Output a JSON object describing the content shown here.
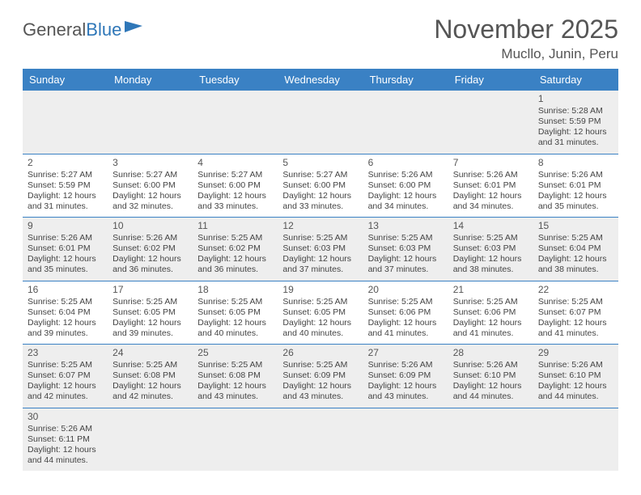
{
  "logo": {
    "text1": "General",
    "text2": "Blue"
  },
  "title": "November 2025",
  "subtitle": "Mucllo, Junin, Peru",
  "colors": {
    "header_bg": "#3a81c4",
    "header_text": "#ffffff",
    "alt_row_bg": "#eeeeee",
    "border": "#3a81c4",
    "text": "#444444"
  },
  "columns": [
    "Sunday",
    "Monday",
    "Tuesday",
    "Wednesday",
    "Thursday",
    "Friday",
    "Saturday"
  ],
  "weeks": [
    [
      null,
      null,
      null,
      null,
      null,
      null,
      {
        "n": "1",
        "sr": "5:28 AM",
        "ss": "5:59 PM",
        "dl": "12 hours and 31 minutes."
      }
    ],
    [
      {
        "n": "2",
        "sr": "5:27 AM",
        "ss": "5:59 PM",
        "dl": "12 hours and 31 minutes."
      },
      {
        "n": "3",
        "sr": "5:27 AM",
        "ss": "6:00 PM",
        "dl": "12 hours and 32 minutes."
      },
      {
        "n": "4",
        "sr": "5:27 AM",
        "ss": "6:00 PM",
        "dl": "12 hours and 33 minutes."
      },
      {
        "n": "5",
        "sr": "5:27 AM",
        "ss": "6:00 PM",
        "dl": "12 hours and 33 minutes."
      },
      {
        "n": "6",
        "sr": "5:26 AM",
        "ss": "6:00 PM",
        "dl": "12 hours and 34 minutes."
      },
      {
        "n": "7",
        "sr": "5:26 AM",
        "ss": "6:01 PM",
        "dl": "12 hours and 34 minutes."
      },
      {
        "n": "8",
        "sr": "5:26 AM",
        "ss": "6:01 PM",
        "dl": "12 hours and 35 minutes."
      }
    ],
    [
      {
        "n": "9",
        "sr": "5:26 AM",
        "ss": "6:01 PM",
        "dl": "12 hours and 35 minutes."
      },
      {
        "n": "10",
        "sr": "5:26 AM",
        "ss": "6:02 PM",
        "dl": "12 hours and 36 minutes."
      },
      {
        "n": "11",
        "sr": "5:25 AM",
        "ss": "6:02 PM",
        "dl": "12 hours and 36 minutes."
      },
      {
        "n": "12",
        "sr": "5:25 AM",
        "ss": "6:03 PM",
        "dl": "12 hours and 37 minutes."
      },
      {
        "n": "13",
        "sr": "5:25 AM",
        "ss": "6:03 PM",
        "dl": "12 hours and 37 minutes."
      },
      {
        "n": "14",
        "sr": "5:25 AM",
        "ss": "6:03 PM",
        "dl": "12 hours and 38 minutes."
      },
      {
        "n": "15",
        "sr": "5:25 AM",
        "ss": "6:04 PM",
        "dl": "12 hours and 38 minutes."
      }
    ],
    [
      {
        "n": "16",
        "sr": "5:25 AM",
        "ss": "6:04 PM",
        "dl": "12 hours and 39 minutes."
      },
      {
        "n": "17",
        "sr": "5:25 AM",
        "ss": "6:05 PM",
        "dl": "12 hours and 39 minutes."
      },
      {
        "n": "18",
        "sr": "5:25 AM",
        "ss": "6:05 PM",
        "dl": "12 hours and 40 minutes."
      },
      {
        "n": "19",
        "sr": "5:25 AM",
        "ss": "6:05 PM",
        "dl": "12 hours and 40 minutes."
      },
      {
        "n": "20",
        "sr": "5:25 AM",
        "ss": "6:06 PM",
        "dl": "12 hours and 41 minutes."
      },
      {
        "n": "21",
        "sr": "5:25 AM",
        "ss": "6:06 PM",
        "dl": "12 hours and 41 minutes."
      },
      {
        "n": "22",
        "sr": "5:25 AM",
        "ss": "6:07 PM",
        "dl": "12 hours and 41 minutes."
      }
    ],
    [
      {
        "n": "23",
        "sr": "5:25 AM",
        "ss": "6:07 PM",
        "dl": "12 hours and 42 minutes."
      },
      {
        "n": "24",
        "sr": "5:25 AM",
        "ss": "6:08 PM",
        "dl": "12 hours and 42 minutes."
      },
      {
        "n": "25",
        "sr": "5:25 AM",
        "ss": "6:08 PM",
        "dl": "12 hours and 43 minutes."
      },
      {
        "n": "26",
        "sr": "5:25 AM",
        "ss": "6:09 PM",
        "dl": "12 hours and 43 minutes."
      },
      {
        "n": "27",
        "sr": "5:26 AM",
        "ss": "6:09 PM",
        "dl": "12 hours and 43 minutes."
      },
      {
        "n": "28",
        "sr": "5:26 AM",
        "ss": "6:10 PM",
        "dl": "12 hours and 44 minutes."
      },
      {
        "n": "29",
        "sr": "5:26 AM",
        "ss": "6:10 PM",
        "dl": "12 hours and 44 minutes."
      }
    ],
    [
      {
        "n": "30",
        "sr": "5:26 AM",
        "ss": "6:11 PM",
        "dl": "12 hours and 44 minutes."
      },
      null,
      null,
      null,
      null,
      null,
      null
    ]
  ],
  "labels": {
    "sunrise": "Sunrise: ",
    "sunset": "Sunset: ",
    "daylight": "Daylight: "
  },
  "row_classes": [
    "first-row",
    "row-2",
    "row-9",
    "row-16",
    "row-23",
    "row-30"
  ]
}
